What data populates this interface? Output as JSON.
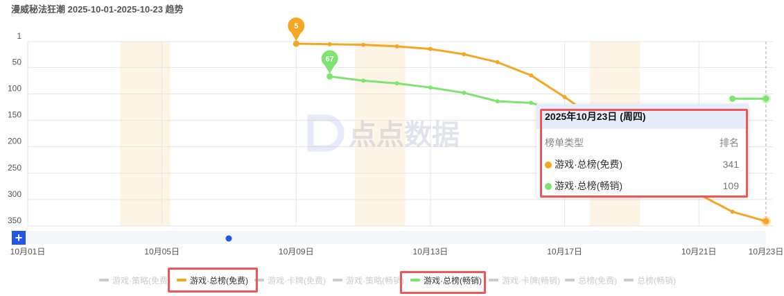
{
  "title": "漫威秘法狂潮 2025-10-01-2025-10-23 趋势",
  "watermark": "点点数据",
  "chart_data": {
    "type": "line",
    "title": "漫威秘法狂潮 2025-10-01-2025-10-23 趋势",
    "x": [
      "10-01",
      "10-02",
      "10-03",
      "10-04",
      "10-05",
      "10-06",
      "10-07",
      "10-08",
      "10-09",
      "10-10",
      "10-11",
      "10-12",
      "10-13",
      "10-14",
      "10-15",
      "10-16",
      "10-17",
      "10-18",
      "10-19",
      "10-20",
      "10-21",
      "10-22",
      "10-23"
    ],
    "x_tick_labels": [
      "10月01日",
      "10月05日",
      "10月09日",
      "10月13日",
      "10月17日",
      "10月21日",
      "10月23日"
    ],
    "y_tick_labels": [
      "1",
      "50",
      "100",
      "150",
      "200",
      "250",
      "300",
      "350"
    ],
    "ylim": [
      1,
      350
    ],
    "y_inverted": true,
    "grid": true,
    "weekend_bands": [
      [
        "10-04",
        "10-05"
      ],
      [
        "10-11",
        "10-12"
      ],
      [
        "10-18",
        "10-19"
      ]
    ],
    "series": [
      {
        "name": "游戏·总榜(免费)",
        "color": "#f5a623",
        "values": [
          null,
          null,
          null,
          null,
          null,
          null,
          null,
          null,
          5,
          6,
          7,
          10,
          15,
          25,
          40,
          65,
          106,
          150,
          200,
          250,
          290,
          323,
          341
        ],
        "start_label": "5"
      },
      {
        "name": "游戏·总榜(畅销)",
        "color": "#7ee46f",
        "values": [
          null,
          null,
          null,
          null,
          null,
          null,
          null,
          null,
          null,
          67,
          75,
          80,
          88,
          98,
          114,
          117,
          135,
          null,
          null,
          null,
          null,
          109,
          109
        ],
        "start_label": "67"
      }
    ],
    "legend": {
      "placement": "bottom",
      "items": [
        {
          "label": "游戏·策略(免费)",
          "active": false
        },
        {
          "label": "游戏·总榜(免费)",
          "active": true,
          "color": "#f5a623"
        },
        {
          "label": "游戏·卡牌(免费)",
          "active": false
        },
        {
          "label": "游戏·策略(畅销)",
          "active": false
        },
        {
          "label": "游戏·总榜(畅销)",
          "active": true,
          "color": "#7ee46f"
        },
        {
          "label": "游戏·卡牌(畅销)",
          "active": false
        },
        {
          "label": "总榜(免费)",
          "active": false
        },
        {
          "label": "总榜(畅销)",
          "active": false
        }
      ]
    }
  },
  "tooltip": {
    "date": "2025年10月23日 (周四)",
    "col_type": "榜单类型",
    "col_rank": "排名",
    "rows": [
      {
        "name": "游戏·总榜(免费)",
        "value": "341",
        "color": "#f5a623"
      },
      {
        "name": "游戏·总榜(畅销)",
        "value": "109",
        "color": "#7ee46f"
      }
    ]
  },
  "zoom_button": "+"
}
